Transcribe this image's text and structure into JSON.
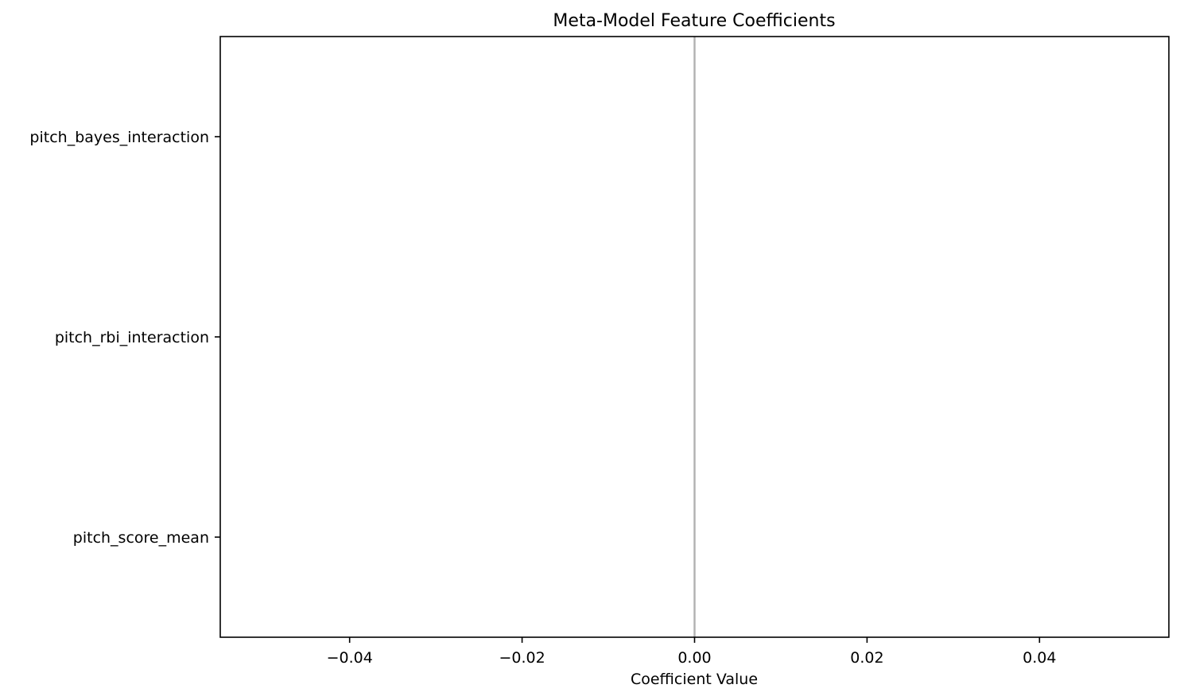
{
  "chart_data": {
    "type": "bar",
    "orientation": "horizontal",
    "title": "Meta-Model Feature Coefficients",
    "xlabel": "Coefficient Value",
    "ylabel": "",
    "categories": [
      "pitch_bayes_interaction",
      "pitch_rbi_interaction",
      "pitch_score_mean"
    ],
    "values": [
      0,
      0,
      0
    ],
    "xlim": [
      -0.055,
      0.055
    ],
    "xticks": [
      -0.04,
      -0.02,
      0.0,
      0.02,
      0.04
    ],
    "xtick_labels": [
      "−0.04",
      "−0.02",
      "0.00",
      "0.02",
      "0.04"
    ],
    "reference_line": {
      "x": 0,
      "color": "#b0b0b0"
    },
    "grid": false,
    "legend": "none"
  }
}
